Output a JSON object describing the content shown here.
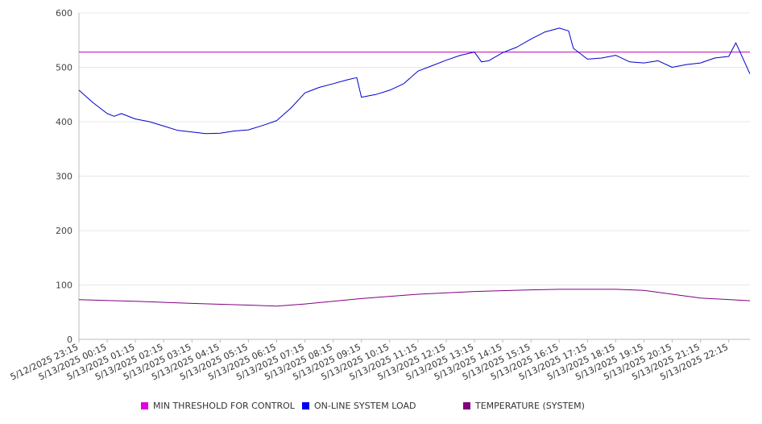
{
  "chart_data": {
    "type": "line",
    "title": "",
    "xlabel": "",
    "ylabel": "",
    "ylim": [
      0,
      600
    ],
    "y_ticks": [
      0,
      100,
      200,
      300,
      400,
      500,
      600
    ],
    "grid": true,
    "legend_position": "bottom",
    "x_tick_labels": [
      "5/12/2025 23:15",
      "5/13/2025 00:15",
      "5/13/2025 01:15",
      "5/13/2025 02:15",
      "5/13/2025 03:15",
      "5/13/2025 04:15",
      "5/13/2025 05:15",
      "5/13/2025 06:15",
      "5/13/2025 07:15",
      "5/13/2025 08:15",
      "5/13/2025 09:15",
      "5/13/2025 10:15",
      "5/13/2025 11:15",
      "5/13/2025 12:15",
      "5/13/2025 13:15",
      "5/13/2025 14:15",
      "5/13/2025 15:15",
      "5/13/2025 16:15",
      "5/13/2025 17:15",
      "5/13/2025 18:15",
      "5/13/2025 19:15",
      "5/13/2025 20:15",
      "5/13/2025 21:15",
      "5/13/2025 22:15"
    ],
    "x_range": [
      "5/12/2025 23:15",
      "5/13/2025 23:00"
    ],
    "series": [
      {
        "name": "MIN THRESHOLD FOR CONTROL",
        "color": "#c000c0",
        "x": [
          "5/12/2025 23:15",
          "5/13/2025 23:00"
        ],
        "values": [
          528,
          528
        ]
      },
      {
        "name": "ON-LINE SYSTEM LOAD",
        "color": "#0000cc",
        "x": [
          "5/12/2025 23:15",
          "5/12/2025 23:45",
          "5/13/2025 00:15",
          "5/13/2025 00:30",
          "5/13/2025 00:45",
          "5/13/2025 01:15",
          "5/13/2025 01:45",
          "5/13/2025 02:15",
          "5/13/2025 02:45",
          "5/13/2025 03:15",
          "5/13/2025 03:45",
          "5/13/2025 04:15",
          "5/13/2025 04:45",
          "5/13/2025 05:15",
          "5/13/2025 05:45",
          "5/13/2025 06:15",
          "5/13/2025 06:45",
          "5/13/2025 07:15",
          "5/13/2025 07:45",
          "5/13/2025 08:15",
          "5/13/2025 08:45",
          "5/13/2025 09:05",
          "5/13/2025 09:15",
          "5/13/2025 09:45",
          "5/13/2025 10:15",
          "5/13/2025 10:45",
          "5/13/2025 11:15",
          "5/13/2025 11:45",
          "5/13/2025 12:15",
          "5/13/2025 12:45",
          "5/13/2025 13:15",
          "5/13/2025 13:30",
          "5/13/2025 13:45",
          "5/13/2025 14:15",
          "5/13/2025 14:45",
          "5/13/2025 15:15",
          "5/13/2025 15:45",
          "5/13/2025 16:15",
          "5/13/2025 16:35",
          "5/13/2025 16:45",
          "5/13/2025 17:15",
          "5/13/2025 17:45",
          "5/13/2025 18:15",
          "5/13/2025 18:45",
          "5/13/2025 19:15",
          "5/13/2025 19:45",
          "5/13/2025 20:15",
          "5/13/2025 20:45",
          "5/13/2025 21:15",
          "5/13/2025 21:45",
          "5/13/2025 22:15",
          "5/13/2025 22:30",
          "5/13/2025 23:00"
        ],
        "values": [
          458,
          435,
          415,
          410,
          415,
          405,
          400,
          392,
          384,
          381,
          378,
          379,
          383,
          385,
          393,
          402,
          425,
          453,
          463,
          470,
          477,
          481,
          445,
          450,
          458,
          470,
          493,
          503,
          513,
          522,
          528,
          510,
          512,
          527,
          537,
          552,
          565,
          572,
          567,
          535,
          515,
          517,
          522,
          510,
          508,
          512,
          500,
          505,
          508,
          517,
          520,
          545,
          488
        ]
      },
      {
        "name": "TEMPERATURE (SYSTEM)",
        "color": "#800080",
        "x": [
          "5/12/2025 23:15",
          "5/13/2025 01:15",
          "5/13/2025 03:15",
          "5/13/2025 05:15",
          "5/13/2025 06:15",
          "5/13/2025 07:15",
          "5/13/2025 09:15",
          "5/13/2025 11:15",
          "5/13/2025 13:15",
          "5/13/2025 15:15",
          "5/13/2025 16:15",
          "5/13/2025 18:15",
          "5/13/2025 19:15",
          "5/13/2025 20:15",
          "5/13/2025 21:15",
          "5/13/2025 23:00"
        ],
        "values": [
          73,
          70,
          66,
          63,
          61,
          65,
          75,
          83,
          88,
          91,
          92,
          92,
          90,
          83,
          76,
          71
        ]
      }
    ]
  }
}
